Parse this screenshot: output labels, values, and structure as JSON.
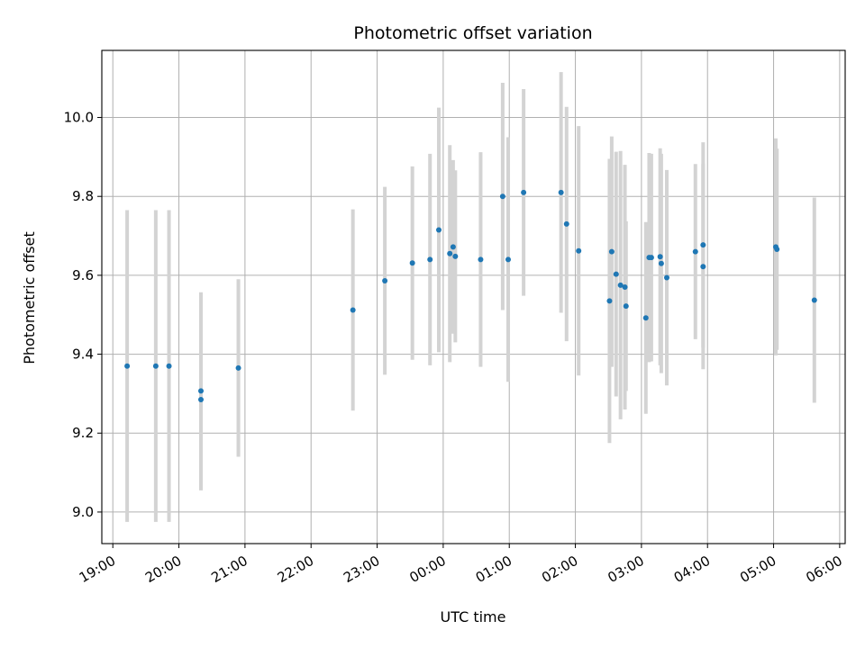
{
  "chart_data": {
    "type": "scatter",
    "title": "Photometric offset variation",
    "xlabel": "UTC time",
    "ylabel": "Photometric offset",
    "grid": true,
    "xlim": [
      "2023-01-01T18:50",
      "2023-01-02T06:05"
    ],
    "ylim": [
      8.92,
      10.17
    ],
    "x_tick_labels": [
      "19:00",
      "20:00",
      "21:00",
      "22:00",
      "23:00",
      "00:00",
      "01:00",
      "02:00",
      "03:00",
      "04:00",
      "05:00",
      "06:00"
    ],
    "y_tick_labels": [
      "9.0",
      "9.2",
      "9.4",
      "9.6",
      "9.8",
      "10.0"
    ],
    "y_ticks": [
      9.0,
      9.2,
      9.4,
      9.6,
      9.8,
      10.0
    ],
    "colors": {
      "points": "#1f77b4",
      "errorbars": "#d3d3d3",
      "grid": "#b0b0b0"
    },
    "points": [
      {
        "time": "2023-01-01T19:13",
        "value": 9.37,
        "error": 0.395
      },
      {
        "time": "2023-01-01T19:39",
        "value": 9.37,
        "error": 0.395
      },
      {
        "time": "2023-01-01T19:51",
        "value": 9.37,
        "error": 0.395
      },
      {
        "time": "2023-01-01T20:20",
        "value": 9.307,
        "error": 0.25
      },
      {
        "time": "2023-01-01T20:20",
        "value": 9.285,
        "error": 0.23
      },
      {
        "time": "2023-01-01T20:54",
        "value": 9.365,
        "error": 0.225
      },
      {
        "time": "2023-01-01T22:38",
        "value": 9.512,
        "error": 0.255
      },
      {
        "time": "2023-01-01T23:07",
        "value": 9.586,
        "error": 0.238
      },
      {
        "time": "2023-01-01T23:32",
        "value": 9.631,
        "error": 0.245
      },
      {
        "time": "2023-01-01T23:48",
        "value": 9.64,
        "error": 0.268
      },
      {
        "time": "2023-01-01T23:56",
        "value": 9.715,
        "error": 0.31
      },
      {
        "time": "2023-01-02T00:06",
        "value": 9.655,
        "error": 0.275
      },
      {
        "time": "2023-01-02T00:09",
        "value": 9.672,
        "error": 0.22
      },
      {
        "time": "2023-01-02T00:11",
        "value": 9.648,
        "error": 0.218
      },
      {
        "time": "2023-01-02T00:34",
        "value": 9.64,
        "error": 0.272
      },
      {
        "time": "2023-01-02T00:54",
        "value": 9.8,
        "error": 0.288
      },
      {
        "time": "2023-01-02T00:59",
        "value": 9.64,
        "error": 0.31
      },
      {
        "time": "2023-01-02T01:13",
        "value": 9.81,
        "error": 0.262
      },
      {
        "time": "2023-01-02T01:47",
        "value": 9.81,
        "error": 0.305
      },
      {
        "time": "2023-01-02T01:52",
        "value": 9.73,
        "error": 0.297
      },
      {
        "time": "2023-01-02T02:03",
        "value": 9.662,
        "error": 0.316
      },
      {
        "time": "2023-01-02T02:31",
        "value": 9.535,
        "error": 0.36
      },
      {
        "time": "2023-01-02T02:33",
        "value": 9.66,
        "error": 0.292
      },
      {
        "time": "2023-01-02T02:37",
        "value": 9.603,
        "error": 0.31
      },
      {
        "time": "2023-01-02T02:41",
        "value": 9.575,
        "error": 0.34
      },
      {
        "time": "2023-01-02T02:45",
        "value": 9.57,
        "error": 0.31
      },
      {
        "time": "2023-01-02T02:46",
        "value": 9.522,
        "error": 0.215
      },
      {
        "time": "2023-01-02T03:04",
        "value": 9.492,
        "error": 0.243
      },
      {
        "time": "2023-01-02T03:07",
        "value": 9.645,
        "error": 0.265
      },
      {
        "time": "2023-01-02T03:09",
        "value": 9.645,
        "error": 0.263
      },
      {
        "time": "2023-01-02T03:17",
        "value": 9.647,
        "error": 0.275
      },
      {
        "time": "2023-01-02T03:18",
        "value": 9.63,
        "error": 0.278
      },
      {
        "time": "2023-01-02T03:23",
        "value": 9.594,
        "error": 0.273
      },
      {
        "time": "2023-01-02T03:49",
        "value": 9.66,
        "error": 0.222
      },
      {
        "time": "2023-01-02T03:56",
        "value": 9.677,
        "error": 0.26
      },
      {
        "time": "2023-01-02T03:56",
        "value": 9.622,
        "error": 0.26
      },
      {
        "time": "2023-01-02T05:02",
        "value": 9.672,
        "error": 0.275
      },
      {
        "time": "2023-01-02T05:03",
        "value": 9.666,
        "error": 0.255
      },
      {
        "time": "2023-01-02T05:37",
        "value": 9.537,
        "error": 0.26
      }
    ]
  }
}
